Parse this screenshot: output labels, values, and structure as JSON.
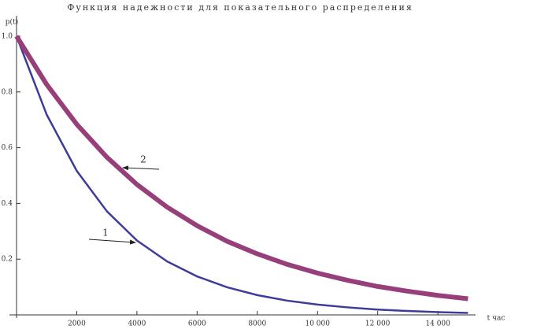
{
  "chart_data": {
    "type": "line",
    "title": "Функция надежности для показательного распределения",
    "y_label": "p(t)",
    "x_label": "t час",
    "x": [
      0,
      1000,
      2000,
      3000,
      4000,
      5000,
      6000,
      7000,
      8000,
      9000,
      10000,
      11000,
      12000,
      13000,
      14000,
      15000
    ],
    "series": [
      {
        "color": "#3d3d99",
        "values": [
          1,
          0.719,
          0.517,
          0.372,
          0.267,
          0.192,
          0.138,
          0.099,
          0.071,
          0.051,
          0.037,
          0.027,
          0.019,
          0.014,
          0.01,
          0.007
        ]
      },
      {
        "color": "#973f7a",
        "values": [
          1,
          0.827,
          0.684,
          0.566,
          0.468,
          0.387,
          0.32,
          0.264,
          0.219,
          0.181,
          0.15,
          0.124,
          0.102,
          0.085,
          0.07,
          0.058
        ]
      }
    ],
    "annotations": [
      "1",
      "2"
    ],
    "xlim": [
      0,
      15200
    ],
    "ylim": [
      0,
      1
    ],
    "xticks": [
      2000,
      4000,
      6000,
      8000,
      {
        "value": 10000,
        "label": "10 000"
      },
      {
        "value": 12000,
        "label": "12 000"
      },
      {
        "value": 14000,
        "label": "14 000"
      }
    ],
    "yticks": [
      0.2,
      0.4,
      0.6,
      0.8,
      {
        "value": 1,
        "label": "1.0"
      }
    ]
  }
}
